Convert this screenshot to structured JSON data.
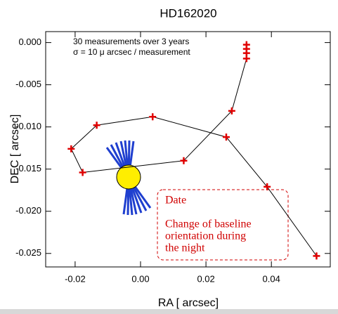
{
  "chart_data": {
    "type": "scatter",
    "title": "HD162020",
    "x_label": "RA [ arcsec]",
    "y_label": "DEC [ arcsec]",
    "x": [
      0.0324,
      0.0324,
      0.0324,
      0.0324,
      0.0279,
      0.0132,
      -0.0177,
      -0.0212,
      -0.0134,
      0.0037,
      0.0262,
      0.0387,
      0.0538
    ],
    "values": [
      -0.00025,
      -0.00075,
      -0.00125,
      -0.0019,
      -0.0081,
      -0.014,
      -0.0154,
      -0.0126,
      -0.0098,
      -0.0088,
      -0.0112,
      -0.0171,
      -0.0253
    ],
    "color": "#e00000",
    "line_color": "#000000",
    "xlim": [
      -0.029,
      0.058
    ],
    "ylim": [
      -0.0266,
      0.0013
    ],
    "xticks": [
      {
        "value": -0.02,
        "label": "-0.02"
      },
      {
        "value": 0,
        "label": "0.00"
      },
      {
        "value": 0.02,
        "label": "0.02"
      },
      {
        "value": 0.04,
        "label": "0.04"
      }
    ],
    "yticks": [
      {
        "value": 0,
        "label": "0.000"
      },
      {
        "value": -0.005,
        "label": "-0.005"
      },
      {
        "value": -0.01,
        "label": "-0.010"
      },
      {
        "value": -0.015,
        "label": "-0.015"
      },
      {
        "value": -0.02,
        "label": "-0.020"
      },
      {
        "value": -0.025,
        "label": "-0.025"
      }
    ],
    "annotations": [
      "30 measurements over 3 years",
      "σ = 10 μ arcsec / measurement"
    ],
    "callout": {
      "title": "Date",
      "lines": [
        "Change of baseline",
        "orientation during",
        "the night"
      ]
    }
  }
}
